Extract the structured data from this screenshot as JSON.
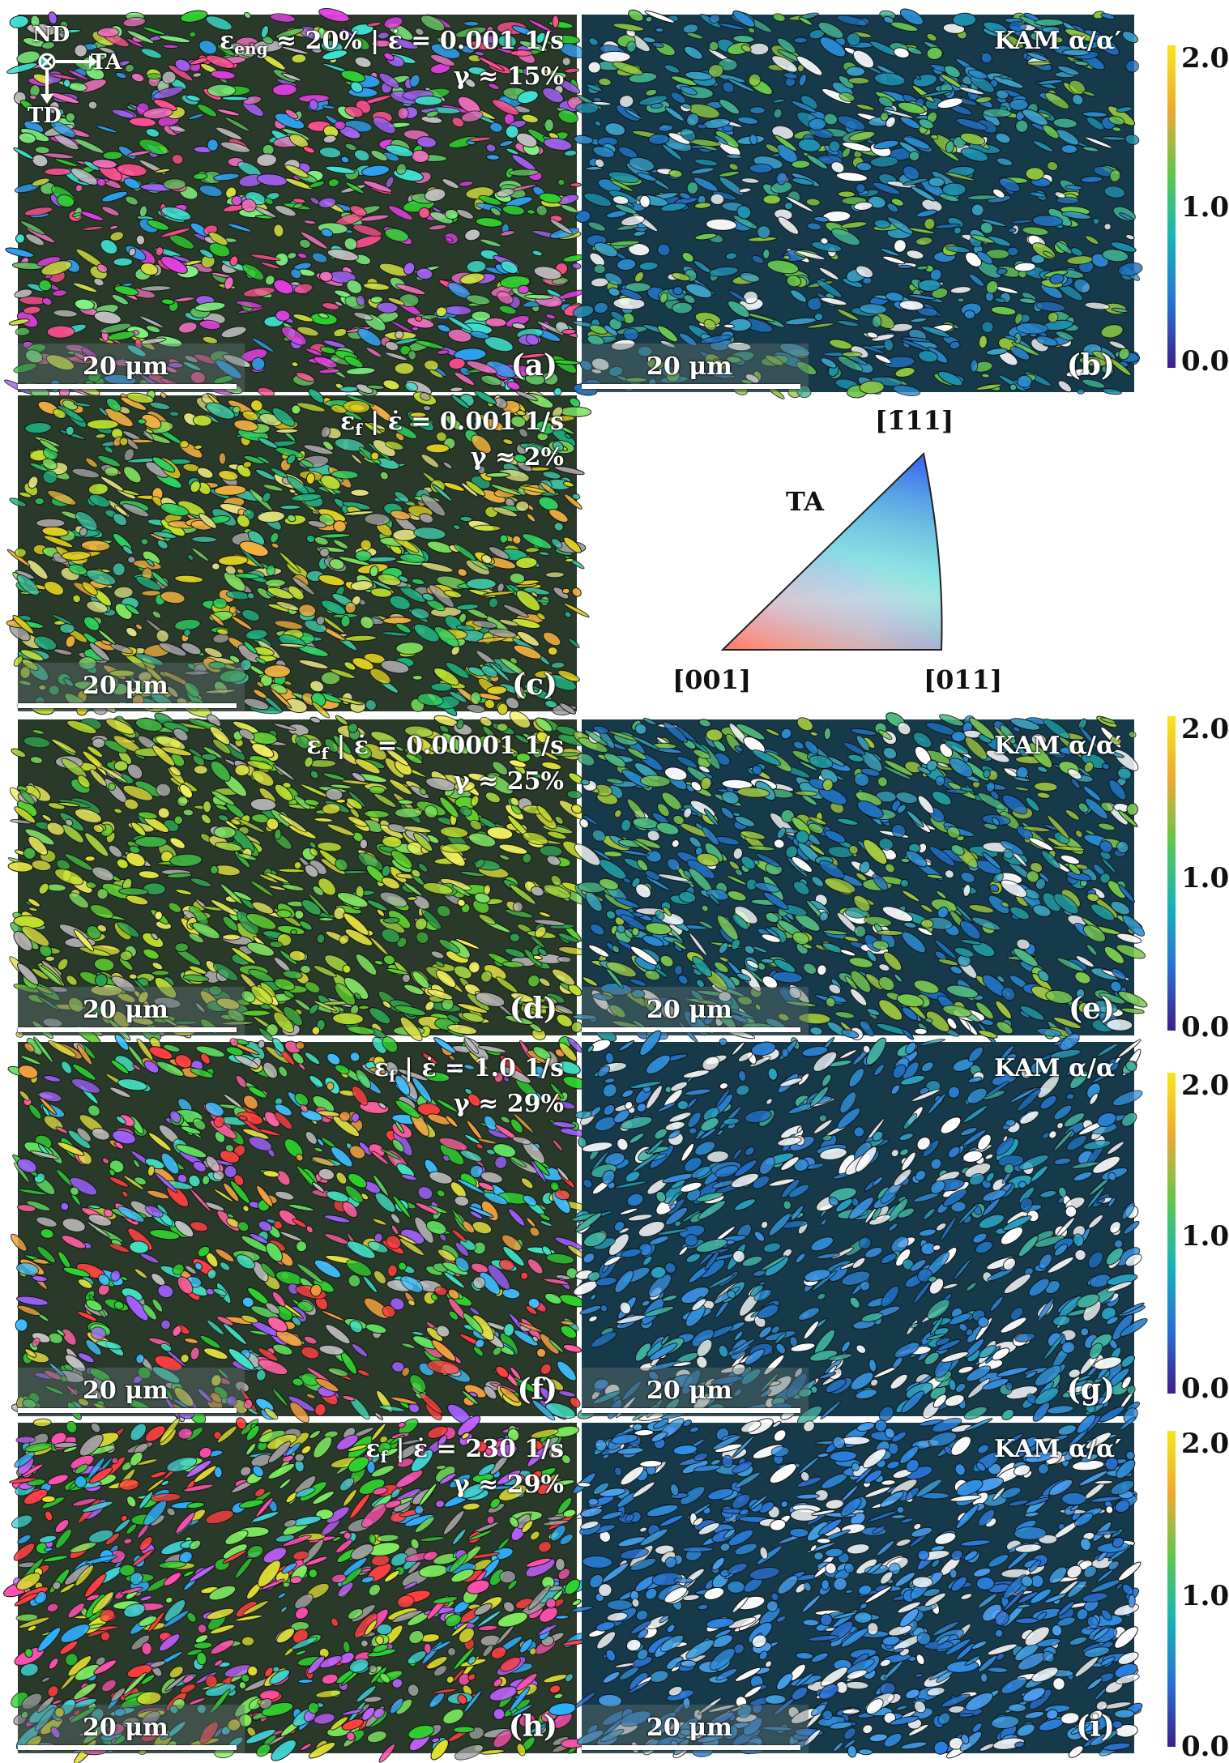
{
  "figure": {
    "panels": [
      {
        "id": "a",
        "kind": "ipf",
        "label": "(a)",
        "scale": "20 μm",
        "header_line1": "ε",
        "header_sub": "eng",
        "header_rest": " ≈ 20% | ε̇ = 0.001 1/s",
        "header_line2": "γ ≈ 15%"
      },
      {
        "id": "b",
        "kind": "kam",
        "label": "(b)",
        "scale": "20 μm",
        "header_line1": "KAM α/α′"
      },
      {
        "id": "c",
        "kind": "ipf",
        "label": "(c)",
        "scale": "20 μm",
        "header_line1": "ε",
        "header_sub": "f",
        "header_rest": " | ε̇ = 0.001 1/s",
        "header_line2": "γ ≈ 2%"
      },
      {
        "id": "d",
        "kind": "ipf",
        "label": "(d)",
        "scale": "20 μm",
        "header_line1": "ε",
        "header_sub": "f",
        "header_rest": " | ε̇ = 0.00001 1/s",
        "header_line2": "γ ≈ 25%"
      },
      {
        "id": "e",
        "kind": "kam",
        "label": "(e)",
        "scale": "20 μm",
        "header_line1": "KAM α/α′"
      },
      {
        "id": "f",
        "kind": "ipf",
        "label": "(f)",
        "scale": "20 μm",
        "header_line1": "ε",
        "header_sub": "f",
        "header_rest": " | ε̇ = 1.0 1/s",
        "header_line2": "γ ≈ 29%"
      },
      {
        "id": "g",
        "kind": "kam",
        "label": "(g)",
        "scale": "20 μm",
        "header_line1": "KAM α/α′"
      },
      {
        "id": "h",
        "kind": "ipf",
        "label": "(h)",
        "scale": "20 μm",
        "header_line1": "ε",
        "header_sub": "f",
        "header_rest": " | ε̇ = 230 1/s",
        "header_line2": "γ ≈ 29%"
      },
      {
        "id": "i",
        "kind": "kam",
        "label": "(i)",
        "scale": "20 μm",
        "header_line1": "KAM α/α′"
      }
    ],
    "axes_legend": {
      "nd": "ND",
      "ta": "TA",
      "td": "TD"
    },
    "colorbar": {
      "max": "2.0",
      "mid": "1.0",
      "min": "0.0",
      "colors": [
        "#3b1f8c",
        "#2a6fd6",
        "#16b3b8",
        "#5cc850",
        "#f0a830",
        "#f5e61a"
      ]
    },
    "ipf_key": {
      "title": "TA",
      "top": "[1̄11]",
      "left": "[001]",
      "right": "[011]"
    }
  }
}
